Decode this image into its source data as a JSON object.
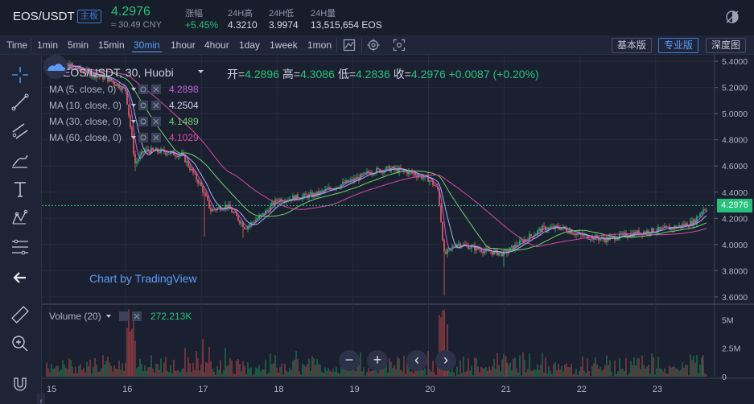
{
  "ticker": {
    "pair": "EOS/USDT",
    "badge": "主板",
    "last": "4.2976",
    "cny": "≈ 30.49 CNY",
    "stats": [
      {
        "label": "涨幅",
        "value": "+5.45%"
      },
      {
        "label": "24H高",
        "value": "4.3210"
      },
      {
        "label": "24H低",
        "value": "3.9974"
      },
      {
        "label": "24H量",
        "value": "13,515,654 EOS"
      }
    ]
  },
  "toolbar": {
    "time_label": "Time",
    "intervals": [
      "1min",
      "5min",
      "15min",
      "30min",
      "1hour",
      "4hour",
      "1day",
      "1week",
      "1mon"
    ],
    "active_interval": "30min",
    "versions": [
      "基本版",
      "专业版",
      "深度图"
    ],
    "active_version": "专业版"
  },
  "legend": {
    "symbol": "EOS/USDT, 30, Huobi",
    "open_label": "开=",
    "open": "4.2896",
    "high_label": "高=",
    "high": "4.3086",
    "low_label": "低=",
    "low": "4.2836",
    "close_label": "收=",
    "close": "4.2976",
    "change": "+0.0087 (+0.20%)",
    "ma": [
      {
        "label": "MA (5, close, 0)",
        "value": "4.2898",
        "color": "#c45cd6"
      },
      {
        "label": "MA (10, close, 0)",
        "value": "4.2504",
        "color": "#9fb4e8"
      },
      {
        "label": "MA (30, close, 0)",
        "value": "4.1489",
        "color": "#6ed36a"
      },
      {
        "label": "MA (60, close, 0)",
        "value": "4.1029",
        "color": "#d64aa8"
      }
    ],
    "volume_label": "Volume (20)",
    "volume_value": "272.213K"
  },
  "watermark": "Chart by TradingView",
  "price_axis": [
    "5.4000",
    "5.2000",
    "5.0000",
    "4.8000",
    "4.6000",
    "4.4000",
    "4.2000",
    "4.0000",
    "3.8000",
    "3.6000"
  ],
  "volume_axis": [
    "5M",
    "2.5M",
    "0"
  ],
  "time_axis": [
    "15",
    "16",
    "17",
    "18",
    "19",
    "20",
    "21",
    "22",
    "23"
  ],
  "current_price_tag": "4.2976",
  "controls": [
    "−",
    "+",
    "‹",
    "›"
  ],
  "colors": {
    "up": "#26c17a",
    "down": "#ef5e63",
    "accent": "#3a7bd5"
  },
  "chart_data": {
    "type": "candlestick",
    "title": "EOS/USDT, 30, Huobi",
    "x": [
      "15",
      "16",
      "17",
      "18",
      "19",
      "20",
      "21",
      "22",
      "23"
    ],
    "ylim": [
      3.55,
      5.45
    ],
    "close_path": [
      {
        "x": "15 00:00",
        "y": 5.32
      },
      {
        "x": "15 06:00",
        "y": 5.37
      },
      {
        "x": "15 12:00",
        "y": 5.31
      },
      {
        "x": "15 18:00",
        "y": 5.27
      },
      {
        "x": "16 00:00",
        "y": 5.18
      },
      {
        "x": "16 03:00",
        "y": 4.62
      },
      {
        "x": "16 06:00",
        "y": 4.72
      },
      {
        "x": "16 12:00",
        "y": 4.71
      },
      {
        "x": "16 18:00",
        "y": 4.68
      },
      {
        "x": "17 00:00",
        "y": 4.44
      },
      {
        "x": "17 03:00",
        "y": 4.26
      },
      {
        "x": "17 08:00",
        "y": 4.3
      },
      {
        "x": "17 14:00",
        "y": 4.13
      },
      {
        "x": "17 20:00",
        "y": 4.24
      },
      {
        "x": "18 00:00",
        "y": 4.34
      },
      {
        "x": "18 06:00",
        "y": 4.36
      },
      {
        "x": "18 12:00",
        "y": 4.38
      },
      {
        "x": "18 18:00",
        "y": 4.44
      },
      {
        "x": "19 00:00",
        "y": 4.49
      },
      {
        "x": "19 06:00",
        "y": 4.56
      },
      {
        "x": "19 12:00",
        "y": 4.58
      },
      {
        "x": "19 18:00",
        "y": 4.55
      },
      {
        "x": "20 00:00",
        "y": 4.5
      },
      {
        "x": "20 03:00",
        "y": 4.42
      },
      {
        "x": "20 05:00",
        "y": 3.92
      },
      {
        "x": "20 09:00",
        "y": 4.01
      },
      {
        "x": "20 18:00",
        "y": 3.95
      },
      {
        "x": "21 00:00",
        "y": 3.93
      },
      {
        "x": "21 06:00",
        "y": 4.03
      },
      {
        "x": "21 12:00",
        "y": 4.12
      },
      {
        "x": "21 18:00",
        "y": 4.13
      },
      {
        "x": "22 00:00",
        "y": 4.07
      },
      {
        "x": "22 08:00",
        "y": 4.04
      },
      {
        "x": "22 16:00",
        "y": 4.08
      },
      {
        "x": "23 00:00",
        "y": 4.11
      },
      {
        "x": "23 06:00",
        "y": 4.13
      },
      {
        "x": "23 12:00",
        "y": 4.17
      },
      {
        "x": "23 15:00",
        "y": 4.27
      },
      {
        "x": "23 18:00",
        "y": 4.3
      }
    ],
    "current_price": 4.2976,
    "volume_ylim": [
      0,
      6.3
    ]
  }
}
